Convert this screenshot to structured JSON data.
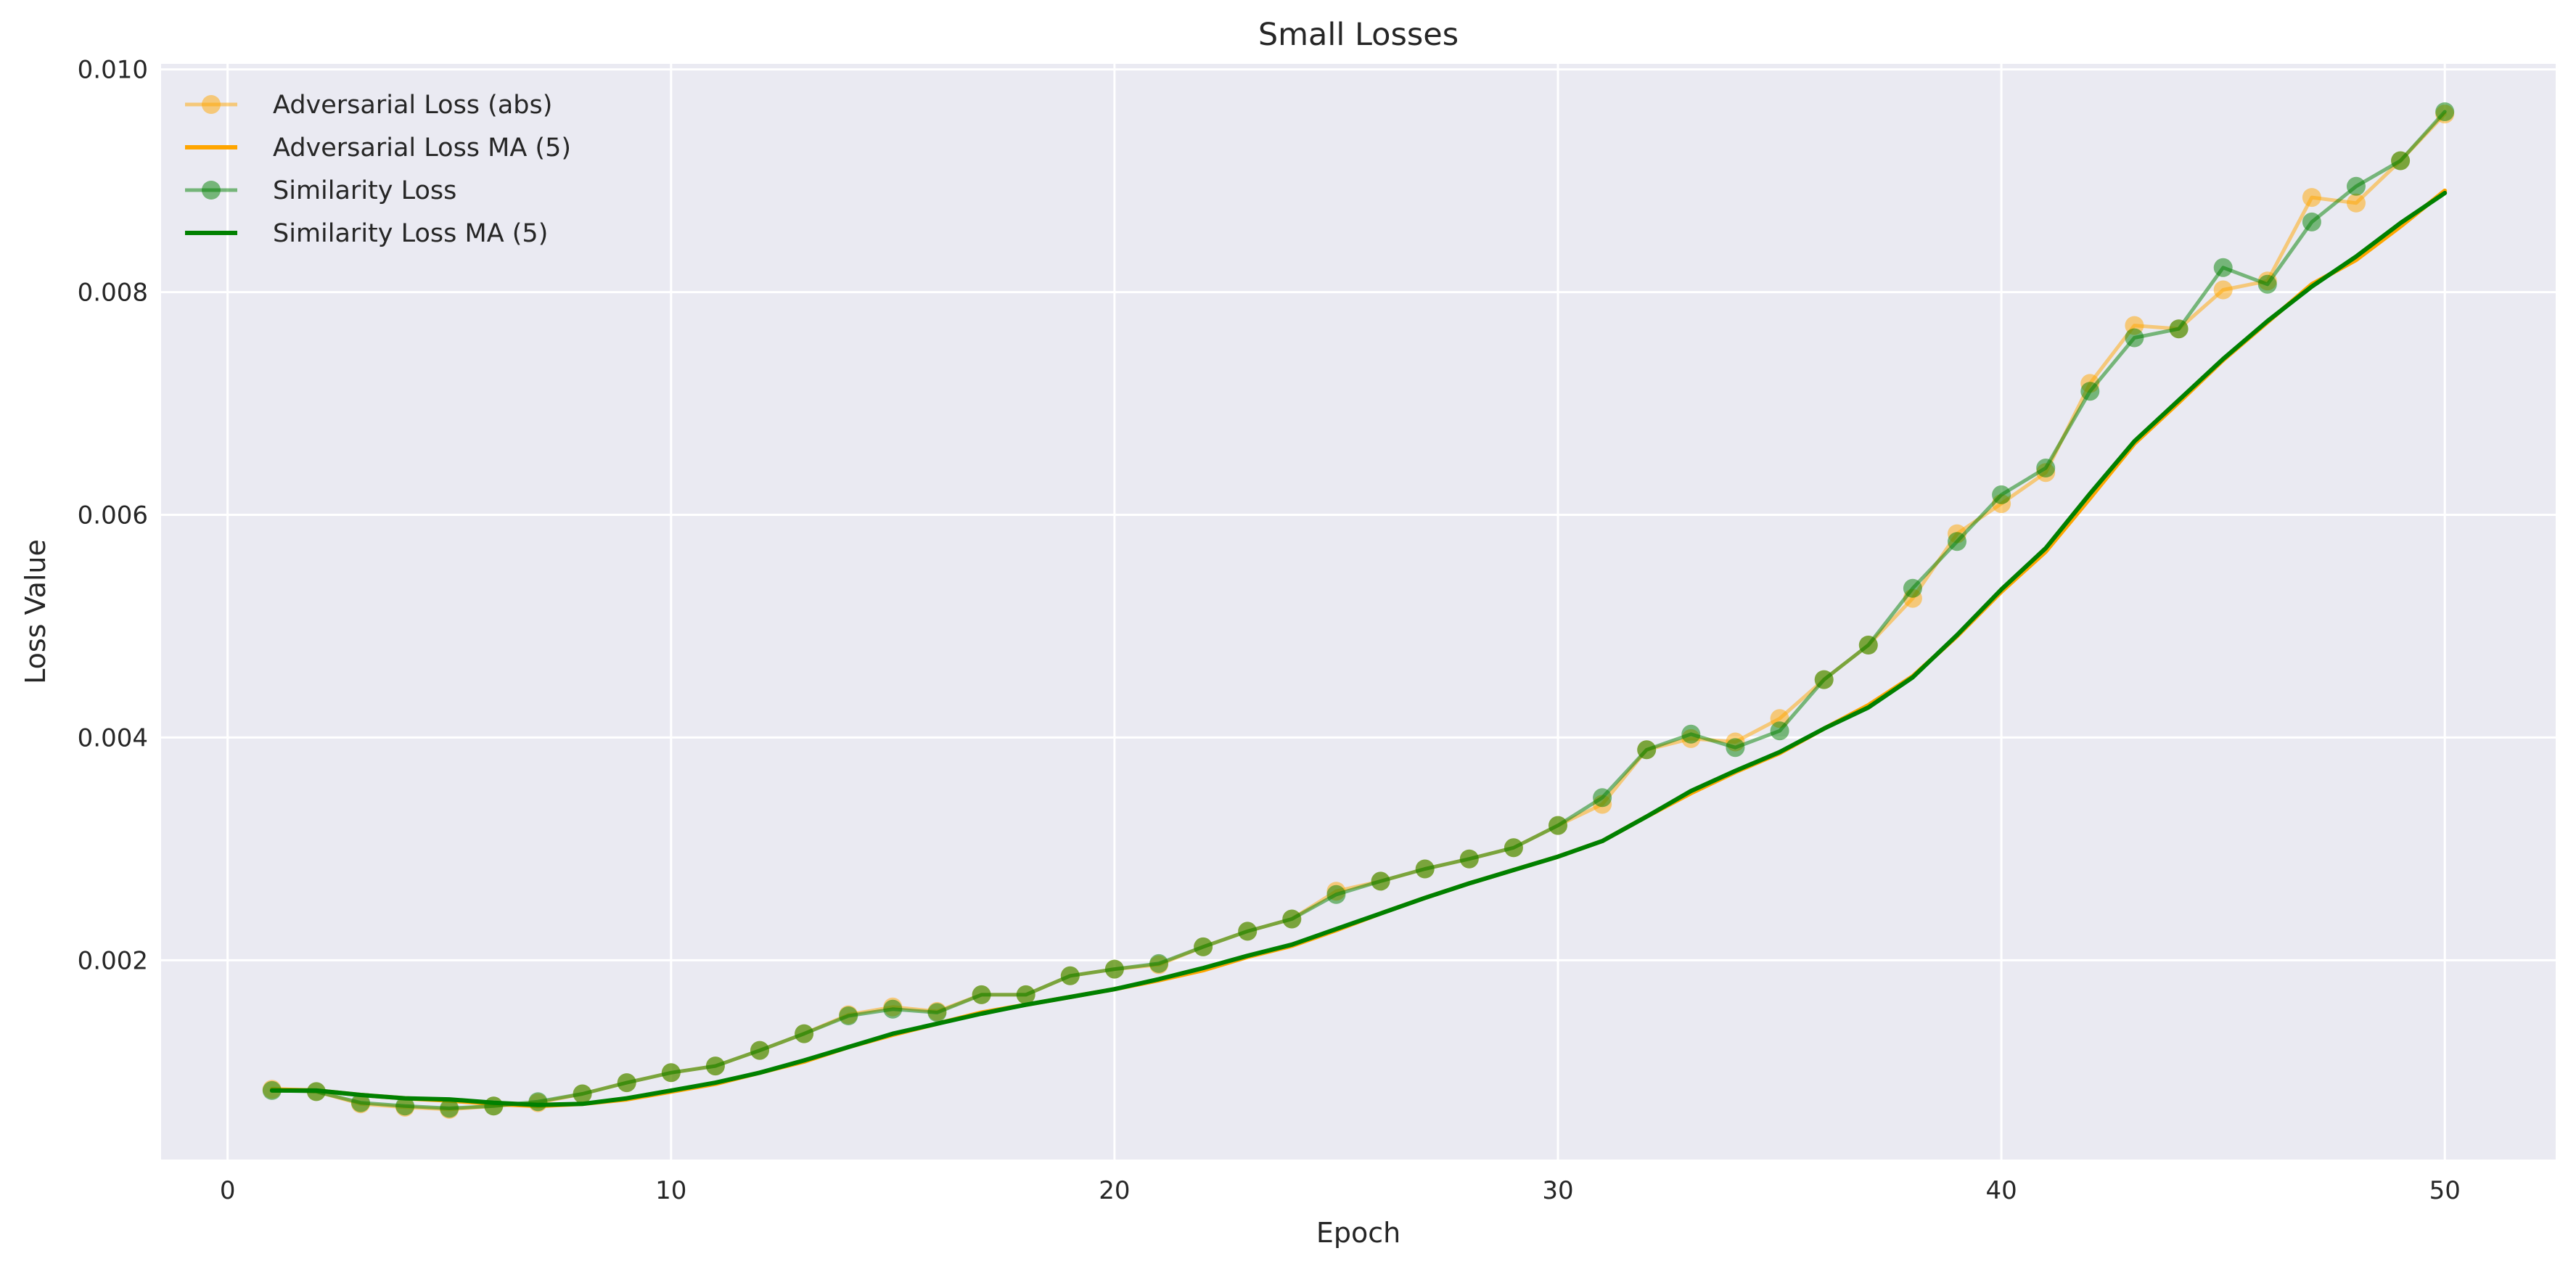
{
  "chart_data": {
    "type": "line",
    "title": "Small Losses",
    "xlabel": "Epoch",
    "ylabel": "Loss Value",
    "xlim": [
      -1.5,
      52.5
    ],
    "ylim": [
      0.00021,
      0.01005
    ],
    "xticks": [
      0,
      10,
      20,
      30,
      40,
      50
    ],
    "xtick_labels": [
      "0",
      "10",
      "20",
      "30",
      "40",
      "50"
    ],
    "yticks": [
      0.002,
      0.004,
      0.006,
      0.008,
      0.01
    ],
    "ytick_labels": [
      "0.002",
      "0.004",
      "0.006",
      "0.008",
      "0.010"
    ],
    "grid": true,
    "legend_position": "top-left",
    "x": [
      1,
      2,
      3,
      4,
      5,
      6,
      7,
      8,
      9,
      10,
      11,
      12,
      13,
      14,
      15,
      16,
      17,
      18,
      19,
      20,
      21,
      22,
      23,
      24,
      25,
      26,
      27,
      28,
      29,
      30,
      31,
      32,
      33,
      34,
      35,
      36,
      37,
      38,
      39,
      40,
      41,
      42,
      43,
      44,
      45,
      46,
      47,
      48,
      49,
      50
    ],
    "series": [
      {
        "name": "Adversarial Loss (abs)",
        "style": "line-markers",
        "color": "#FFA500",
        "alpha": 0.5,
        "values": [
          0.00084,
          0.00082,
          0.00071,
          0.00068,
          0.00066,
          0.00069,
          0.00072,
          0.0008,
          0.0009,
          0.00099,
          0.00105,
          0.00119,
          0.00134,
          0.00151,
          0.00158,
          0.00154,
          0.00169,
          0.00169,
          0.00186,
          0.00192,
          0.00196,
          0.00212,
          0.00226,
          0.00237,
          0.00262,
          0.00271,
          0.00282,
          0.00291,
          0.00301,
          0.00321,
          0.0034,
          0.00389,
          0.00399,
          0.00396,
          0.00417,
          0.00452,
          0.00483,
          0.00525,
          0.00583,
          0.0061,
          0.00638,
          0.00718,
          0.0077,
          0.00767,
          0.00802,
          0.0081,
          0.00885,
          0.0088,
          0.00918,
          0.0096
        ]
      },
      {
        "name": "Adversarial Loss MA (5)",
        "style": "line",
        "color": "#FFA500",
        "alpha": 1.0,
        "values": [
          0.00084,
          0.00083,
          0.00079,
          0.00076,
          0.00074,
          0.00071,
          0.00069,
          0.00071,
          0.00075,
          0.00082,
          0.00089,
          0.00099,
          0.00109,
          0.00122,
          0.00133,
          0.00143,
          0.00153,
          0.0016,
          0.00167,
          0.00174,
          0.00182,
          0.00191,
          0.00203,
          0.00213,
          0.00227,
          0.00242,
          0.00256,
          0.00269,
          0.00281,
          0.00293,
          0.00307,
          0.00329,
          0.0035,
          0.00369,
          0.00386,
          0.00408,
          0.00429,
          0.00455,
          0.00491,
          0.00531,
          0.00567,
          0.00615,
          0.00664,
          0.00701,
          0.00739,
          0.00773,
          0.00807,
          0.00829,
          0.00859,
          0.00891
        ]
      },
      {
        "name": "Similarity Loss",
        "style": "line-markers",
        "color": "#008000",
        "alpha": 0.5,
        "values": [
          0.00083,
          0.00082,
          0.00072,
          0.00069,
          0.00067,
          0.00069,
          0.00073,
          0.0008,
          0.0009,
          0.00099,
          0.00105,
          0.00119,
          0.00134,
          0.0015,
          0.00156,
          0.00153,
          0.00169,
          0.00169,
          0.00186,
          0.00192,
          0.00197,
          0.00212,
          0.00226,
          0.00237,
          0.00259,
          0.00271,
          0.00282,
          0.00291,
          0.00301,
          0.00321,
          0.00346,
          0.00389,
          0.00403,
          0.00391,
          0.00406,
          0.00452,
          0.00483,
          0.00534,
          0.00576,
          0.00618,
          0.00642,
          0.00711,
          0.00759,
          0.00767,
          0.00822,
          0.00807,
          0.00863,
          0.00895,
          0.00918,
          0.00962
        ]
      },
      {
        "name": "Similarity Loss MA (5)",
        "style": "line",
        "color": "#008000",
        "alpha": 1.0,
        "values": [
          0.00083,
          0.00083,
          0.00079,
          0.00076,
          0.00075,
          0.00072,
          0.0007,
          0.00071,
          0.00076,
          0.00083,
          0.0009,
          0.00099,
          0.0011,
          0.00122,
          0.00134,
          0.00143,
          0.00152,
          0.0016,
          0.00167,
          0.00174,
          0.00183,
          0.00193,
          0.00204,
          0.00214,
          0.00228,
          0.00242,
          0.00256,
          0.00269,
          0.00281,
          0.00293,
          0.00307,
          0.00329,
          0.00352,
          0.0037,
          0.00387,
          0.00408,
          0.00427,
          0.00454,
          0.00492,
          0.00533,
          0.0057,
          0.00619,
          0.00666,
          0.00703,
          0.0074,
          0.00774,
          0.00805,
          0.00832,
          0.00862,
          0.00889
        ]
      }
    ]
  }
}
